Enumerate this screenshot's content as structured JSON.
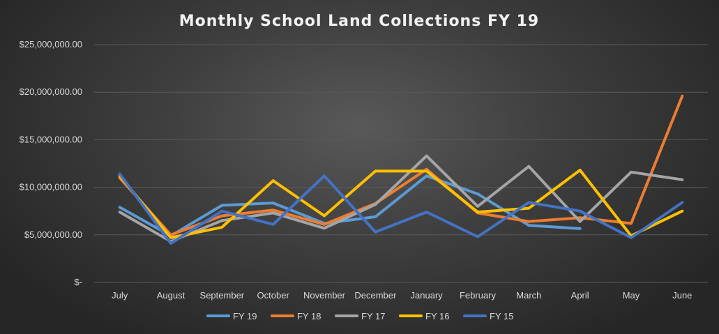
{
  "chart_data": {
    "type": "line",
    "title": "Monthly School Land Collections FY 19",
    "xlabel": "",
    "ylabel": "",
    "categories": [
      "July",
      "August",
      "September",
      "October",
      "November",
      "December",
      "January",
      "February",
      "March",
      "April",
      "May",
      "June"
    ],
    "ylim": [
      0,
      25000000
    ],
    "yticks": [
      0,
      5000000,
      10000000,
      15000000,
      20000000,
      25000000
    ],
    "ytick_labels": [
      "$-",
      "$5,000,000.00",
      "$10,000,000.00",
      "$15,000,000.00",
      "$20,000,000.00",
      "$25,000,000.00"
    ],
    "grid": true,
    "legend_position": "bottom",
    "series": [
      {
        "name": "FY 19",
        "color": "#5b9bd5",
        "values": [
          7900000,
          4900000,
          8100000,
          8350000,
          6200000,
          6900000,
          11200000,
          9300000,
          6000000,
          5650000,
          null,
          null
        ]
      },
      {
        "name": "FY 18",
        "color": "#ed7d31",
        "values": [
          11000000,
          5000000,
          7000000,
          7600000,
          6100000,
          8300000,
          11900000,
          7300000,
          6400000,
          6800000,
          6200000,
          19600000
        ]
      },
      {
        "name": "FY 17",
        "color": "#a5a5a5",
        "values": [
          7400000,
          4300000,
          6500000,
          7300000,
          5700000,
          8200000,
          13300000,
          8000000,
          12200000,
          6400000,
          11600000,
          10800000
        ]
      },
      {
        "name": "FY 16",
        "color": "#ffc000",
        "values": [
          11200000,
          4700000,
          5800000,
          10700000,
          7000000,
          11700000,
          11700000,
          7400000,
          7800000,
          11800000,
          4900000,
          7500000
        ]
      },
      {
        "name": "FY 15",
        "color": "#4472c4",
        "values": [
          11400000,
          4100000,
          7500000,
          6100000,
          11200000,
          5300000,
          7400000,
          4800000,
          8400000,
          7500000,
          4700000,
          8400000
        ]
      }
    ]
  }
}
